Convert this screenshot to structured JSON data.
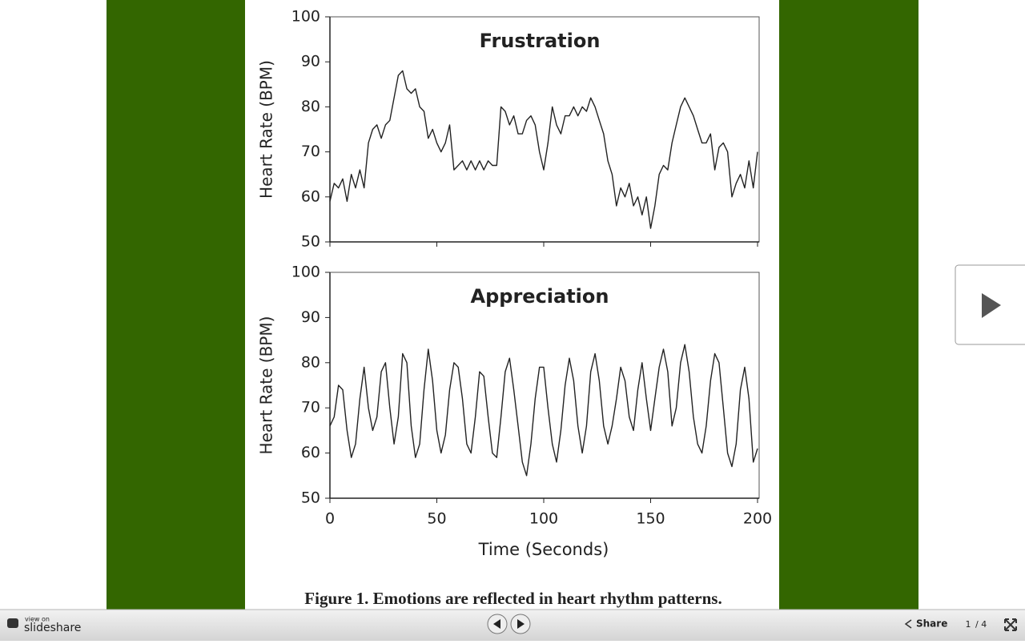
{
  "chart_data": [
    {
      "type": "line",
      "title": "Frustration",
      "ylabel": "Heart Rate (BPM)",
      "xlim": [
        0,
        200
      ],
      "ylim": [
        50,
        100
      ],
      "yticks": [
        50,
        60,
        70,
        80,
        90,
        100
      ],
      "series": [
        {
          "name": "Frustration",
          "color": "#222222",
          "x": [
            0,
            2,
            4,
            6,
            8,
            10,
            12,
            14,
            16,
            18,
            20,
            22,
            24,
            26,
            28,
            30,
            32,
            34,
            36,
            38,
            40,
            42,
            44,
            46,
            48,
            50,
            52,
            54,
            56,
            58,
            60,
            62,
            64,
            66,
            68,
            70,
            72,
            74,
            76,
            78,
            80,
            82,
            84,
            86,
            88,
            90,
            92,
            94,
            96,
            98,
            100,
            102,
            104,
            106,
            108,
            110,
            112,
            114,
            116,
            118,
            120,
            122,
            124,
            126,
            128,
            130,
            132,
            134,
            136,
            138,
            140,
            142,
            144,
            146,
            148,
            150,
            152,
            154,
            156,
            158,
            160,
            162,
            164,
            166,
            168,
            170,
            172,
            174,
            176,
            178,
            180,
            182,
            184,
            186,
            188,
            190,
            192,
            194,
            196,
            198,
            200
          ],
          "values": [
            59,
            63,
            62,
            64,
            59,
            65,
            62,
            66,
            62,
            72,
            75,
            76,
            73,
            76,
            77,
            82,
            87,
            88,
            84,
            83,
            84,
            80,
            79,
            73,
            75,
            72,
            70,
            72,
            76,
            66,
            67,
            68,
            66,
            68,
            66,
            68,
            66,
            68,
            67,
            67,
            80,
            79,
            76,
            78,
            74,
            74,
            77,
            78,
            76,
            70,
            66,
            72,
            80,
            76,
            74,
            78,
            78,
            80,
            78,
            80,
            79,
            82,
            80,
            77,
            74,
            68,
            65,
            58,
            62,
            60,
            63,
            58,
            60,
            56,
            60,
            53,
            58,
            65,
            67,
            66,
            72,
            76,
            80,
            82,
            80,
            78,
            75,
            72,
            72,
            74,
            66,
            71,
            72,
            70,
            60,
            63,
            65,
            62,
            68,
            62,
            70
          ]
        }
      ]
    },
    {
      "type": "line",
      "title": "Appreciation",
      "ylabel": "Heart Rate (BPM)",
      "xlabel": "Time (Seconds)",
      "xlim": [
        0,
        200
      ],
      "xticks": [
        0,
        50,
        100,
        150,
        200
      ],
      "ylim": [
        50,
        100
      ],
      "yticks": [
        50,
        60,
        70,
        80,
        90,
        100
      ],
      "series": [
        {
          "name": "Appreciation",
          "color": "#222222",
          "x": [
            0,
            2,
            4,
            6,
            8,
            10,
            12,
            14,
            16,
            18,
            20,
            22,
            24,
            26,
            28,
            30,
            32,
            34,
            36,
            38,
            40,
            42,
            44,
            46,
            48,
            50,
            52,
            54,
            56,
            58,
            60,
            62,
            64,
            66,
            68,
            70,
            72,
            74,
            76,
            78,
            80,
            82,
            84,
            86,
            88,
            90,
            92,
            94,
            96,
            98,
            100,
            102,
            104,
            106,
            108,
            110,
            112,
            114,
            116,
            118,
            120,
            122,
            124,
            126,
            128,
            130,
            132,
            134,
            136,
            138,
            140,
            142,
            144,
            146,
            148,
            150,
            152,
            154,
            156,
            158,
            160,
            162,
            164,
            166,
            168,
            170,
            172,
            174,
            176,
            178,
            180,
            182,
            184,
            186,
            188,
            190,
            192,
            194,
            196,
            198,
            200
          ],
          "values": [
            66,
            68,
            75,
            74,
            65,
            59,
            62,
            72,
            79,
            70,
            65,
            68,
            78,
            80,
            70,
            62,
            68,
            82,
            80,
            66,
            59,
            62,
            74,
            83,
            76,
            65,
            60,
            64,
            74,
            80,
            79,
            72,
            62,
            60,
            68,
            78,
            77,
            68,
            60,
            59,
            68,
            78,
            81,
            74,
            66,
            58,
            55,
            62,
            72,
            79,
            79,
            70,
            62,
            58,
            65,
            75,
            81,
            76,
            66,
            60,
            66,
            78,
            82,
            76,
            66,
            62,
            66,
            72,
            79,
            76,
            68,
            65,
            74,
            80,
            72,
            65,
            72,
            79,
            83,
            78,
            66,
            70,
            80,
            84,
            78,
            68,
            62,
            60,
            66,
            76,
            82,
            80,
            70,
            60,
            57,
            62,
            74,
            79,
            72,
            58,
            61
          ]
        }
      ]
    }
  ],
  "caption": "Figure 1. Emotions are reflected in heart rhythm patterns.",
  "toolbar": {
    "view_on": "view on",
    "brand": "slideshare",
    "share": "Share",
    "page": "1",
    "total": "/ 4"
  }
}
